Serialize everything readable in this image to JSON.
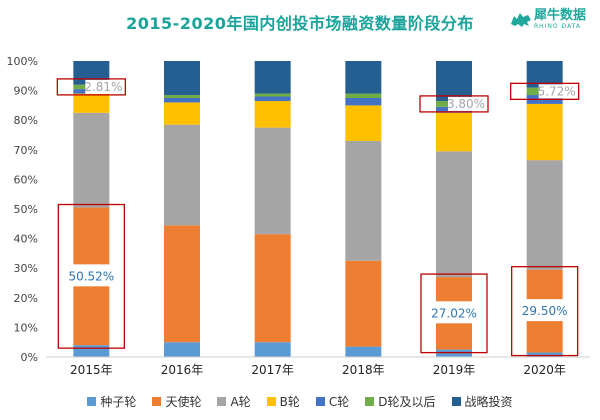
{
  "brand": {
    "name_cn": "犀牛数据",
    "name_en": "RHINO DATA"
  },
  "chart_data": {
    "type": "bar",
    "stacked": true,
    "title": "2015-2020年国内创投市场融资数量阶段分布",
    "categories": [
      "2015年",
      "2016年",
      "2017年",
      "2018年",
      "2019年",
      "2020年"
    ],
    "ylim": [
      0,
      100
    ],
    "yticks": [
      "0%",
      "10%",
      "20%",
      "30%",
      "40%",
      "50%",
      "60%",
      "70%",
      "80%",
      "90%",
      "100%"
    ],
    "grid": false,
    "legend_position": "bottom",
    "series": [
      {
        "name": "种子轮",
        "color": "#5b9bd5",
        "values": [
          4,
          5,
          5,
          3.5,
          2.5,
          1.5
        ]
      },
      {
        "name": "天使轮",
        "color": "#ed7d31",
        "values": [
          46.5,
          39.5,
          36.5,
          29,
          24.5,
          28
        ]
      },
      {
        "name": "A轮",
        "color": "#a5a5a5",
        "values": [
          32,
          34,
          36,
          40.5,
          42.5,
          37
        ]
      },
      {
        "name": "B轮",
        "color": "#ffc000",
        "values": [
          6.5,
          7.5,
          9,
          12,
          13,
          19
        ]
      },
      {
        "name": "C轮",
        "color": "#4472c4",
        "values": [
          1.5,
          1.5,
          1.5,
          2.5,
          2,
          3
        ]
      },
      {
        "name": "D轮及以后",
        "color": "#70ad47",
        "values": [
          1.5,
          1,
          1,
          1.5,
          2,
          2.5
        ]
      },
      {
        "name": "战略投资",
        "color": "#255e91",
        "values": [
          8,
          11.5,
          11,
          11,
          13.5,
          9
        ]
      }
    ],
    "annotations": [
      {
        "category": "2015年",
        "text": "50.52%",
        "series": "天使轮",
        "color": "#2f75b5"
      },
      {
        "category": "2015年",
        "text": "2.81%",
        "series": "D轮及以后",
        "color": "#a6a6a6"
      },
      {
        "category": "2019年",
        "text": "27.02%",
        "series": "天使轮",
        "color": "#2f75b5"
      },
      {
        "category": "2019年",
        "text": "3.80%",
        "series": "D轮及以后",
        "color": "#a6a6a6"
      },
      {
        "category": "2020年",
        "text": "29.50%",
        "series": "天使轮",
        "color": "#2f75b5"
      },
      {
        "category": "2020年",
        "text": "5.72%",
        "series": "D轮及以后",
        "color": "#a6a6a6"
      }
    ],
    "highlight_color": "#c00000"
  }
}
